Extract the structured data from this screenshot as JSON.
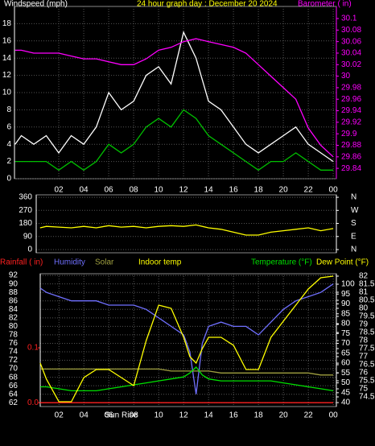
{
  "chart_data": [
    {
      "type": "line",
      "y_label": "Windspeed (mph)",
      "title": "24 hour graph day : December 20 2024",
      "y2_label": "Barometer ( in)",
      "title_color": "#ffff00",
      "y_color": "#ffffff",
      "y2_color": "#ff00ff",
      "x": [
        -1.5,
        -1,
        0,
        1,
        2,
        3,
        4,
        5,
        6,
        7,
        8,
        9,
        10,
        11,
        12,
        13,
        14,
        15,
        16,
        17,
        18,
        19,
        20,
        21,
        22,
        23,
        24
      ],
      "xlim": [
        -1.55,
        24.25
      ],
      "xticks": [
        {
          "value": 2,
          "label": "02"
        },
        {
          "value": 4,
          "label": "04"
        },
        {
          "value": 6,
          "label": "06"
        },
        {
          "value": 8,
          "label": "08"
        },
        10,
        12,
        14,
        16,
        18,
        20,
        22,
        {
          "value": 24,
          "label": "00"
        }
      ],
      "ylim": [
        0,
        20
      ],
      "yticks": [
        0,
        2,
        4,
        6,
        8,
        10,
        12,
        14,
        16,
        18
      ],
      "y2lim": [
        29.822,
        30.121
      ],
      "y2ticks": [
        29.84,
        29.86,
        29.88,
        29.9,
        29.92,
        29.94,
        29.96,
        29.98,
        30,
        30.02,
        30.04,
        30.06,
        30.08,
        30.1
      ],
      "grid": true,
      "series": [
        {
          "color": "#ffffff",
          "values": [
            4,
            5,
            4,
            5,
            3,
            5,
            4,
            6,
            10,
            8,
            9,
            12,
            13,
            11,
            17,
            14,
            9,
            8,
            6,
            4,
            3,
            4,
            5,
            6,
            4,
            3,
            2
          ]
        },
        {
          "color": "#00c000",
          "values": [
            2,
            2,
            2,
            2,
            1,
            2,
            1,
            2,
            4,
            3,
            4,
            6,
            7,
            6,
            8,
            7,
            5,
            4,
            3,
            2,
            1,
            2,
            2,
            3,
            2,
            1,
            1
          ]
        },
        {
          "color": "#ff00ff",
          "axis": "y2",
          "values": [
            30.045,
            30.045,
            30.04,
            30.04,
            30.04,
            30.035,
            30.03,
            30.03,
            30.025,
            30.02,
            30.02,
            30.03,
            30.045,
            30.05,
            30.06,
            30.065,
            30.06,
            30.055,
            30.05,
            30.04,
            30.02,
            30.0,
            29.98,
            29.96,
            29.91,
            29.88,
            29.86
          ]
        }
      ]
    },
    {
      "type": "line",
      "y_color": "#ffffff",
      "y2_color": "#ffffff",
      "x": [
        0.5,
        1,
        2,
        3,
        4,
        5,
        6,
        7,
        8,
        9,
        10,
        11,
        12,
        13,
        14,
        15,
        16,
        17,
        18,
        19,
        20,
        21,
        22,
        23,
        24
      ],
      "xlim": [
        0.19,
        24.25
      ],
      "ylim": [
        -22,
        377
      ],
      "yticks": [
        0,
        90,
        180,
        270,
        360
      ],
      "y2lim": [
        -22,
        377
      ],
      "y2ticks": [
        {
          "value": 0,
          "label": "N"
        },
        {
          "value": 90,
          "label": "E"
        },
        {
          "value": 180,
          "label": "S"
        },
        {
          "value": 270,
          "label": "W"
        },
        {
          "value": 360,
          "label": "N"
        }
      ],
      "grid": true,
      "series": [
        {
          "color": "#ffff00",
          "values": [
            150,
            160,
            155,
            150,
            160,
            150,
            165,
            155,
            160,
            150,
            160,
            165,
            160,
            170,
            150,
            140,
            120,
            100,
            100,
            120,
            130,
            140,
            150,
            130,
            145
          ]
        }
      ]
    },
    {
      "type": "line",
      "y_color": "#ffffff",
      "y2_color": "#ffffff",
      "y3_color": "#ffffff",
      "y4_color": "#ff2020",
      "x": [
        0.5,
        1,
        2,
        3,
        4,
        5,
        6,
        7,
        8,
        9,
        10,
        11,
        12,
        12.5,
        13,
        13.5,
        14,
        15,
        16,
        17,
        18,
        19,
        20,
        21,
        22,
        23,
        24
      ],
      "xlim": [
        0.5,
        24.25
      ],
      "xticks": [
        {
          "value": 2,
          "label": "02"
        },
        {
          "value": 4,
          "label": "04"
        },
        {
          "value": 6,
          "label": "06"
        },
        {
          "value": 8,
          "label": "08"
        },
        10,
        12,
        14,
        16,
        18,
        20,
        22,
        {
          "value": 24,
          "label": "00"
        }
      ],
      "annotations": [
        {
          "text": "Sun Rise",
          "x": 7
        }
      ],
      "ylim": [
        61.1,
        92.4
      ],
      "yticks": [
        62,
        64,
        66,
        68,
        70,
        72,
        74,
        76,
        78,
        80,
        82,
        84,
        86,
        88,
        90,
        92
      ],
      "y2lim": [
        38,
        105.3
      ],
      "y2ticks": [
        40,
        45,
        50,
        55,
        60,
        65,
        70,
        75,
        80,
        85,
        90,
        95,
        100
      ],
      "y3lim": [
        73.9,
        82.15
      ],
      "y3ticks": [
        74.5,
        75,
        75.5,
        76,
        76.5,
        77,
        77.5,
        78,
        78.5,
        79,
        79.5,
        80,
        80.5,
        81,
        81.5,
        82
      ],
      "y4lim": [
        -0.007,
        0.235
      ],
      "y4ticks": [
        {
          "value": 0,
          "label": "0.0"
        },
        0.1
      ],
      "grid": true,
      "legend_texts": [
        {
          "text": "Indoor temp",
          "color": "#ffff00"
        }
      ],
      "series": [
        {
          "name": "Rainfall ( in)",
          "color": "#ff2020",
          "axis": "y4",
          "values": [
            0,
            0,
            0,
            0,
            0,
            0,
            0,
            0,
            0,
            0,
            0,
            0,
            0,
            0,
            0,
            0,
            0,
            0,
            0,
            0,
            0,
            0,
            0,
            0,
            0,
            0,
            0
          ]
        },
        {
          "name": "Humidity",
          "color": "#7070ff",
          "values": [
            89,
            88,
            87,
            86,
            86,
            86,
            85,
            85,
            85,
            84,
            82,
            80,
            78,
            74,
            64,
            76,
            80,
            81,
            80,
            80,
            78,
            81,
            84,
            86,
            87,
            88,
            90
          ]
        },
        {
          "name": "Solar",
          "color": "#a0a040",
          "axis": "y2",
          "values": [
            57,
            57,
            57,
            57,
            57,
            57,
            57,
            57,
            57,
            57,
            57,
            56,
            56,
            56,
            56,
            56,
            56,
            55,
            55,
            55,
            55,
            55,
            55,
            55,
            55,
            54,
            54
          ]
        },
        {
          "name": "Temperature (°F)",
          "color": "#00e000",
          "axis": "y2",
          "values": [
            48,
            48,
            47,
            46,
            46,
            46,
            47,
            48,
            49,
            50,
            51,
            52,
            53,
            55,
            58,
            54,
            52,
            51,
            51,
            51,
            51,
            51,
            50,
            49,
            48,
            47,
            46
          ]
        },
        {
          "name": "Dew Point (°F)",
          "color": "#ffff00",
          "axis": "y3",
          "values": [
            76.6,
            75.6,
            74.2,
            74.2,
            75.7,
            76.2,
            76.2,
            75.7,
            75.2,
            78.0,
            80.2,
            80.0,
            78.2,
            77.0,
            76.6,
            77.5,
            78.2,
            78.2,
            77.7,
            76.2,
            76.2,
            78.2,
            79.2,
            80.2,
            81.2,
            81.9,
            82.0
          ]
        }
      ]
    }
  ]
}
